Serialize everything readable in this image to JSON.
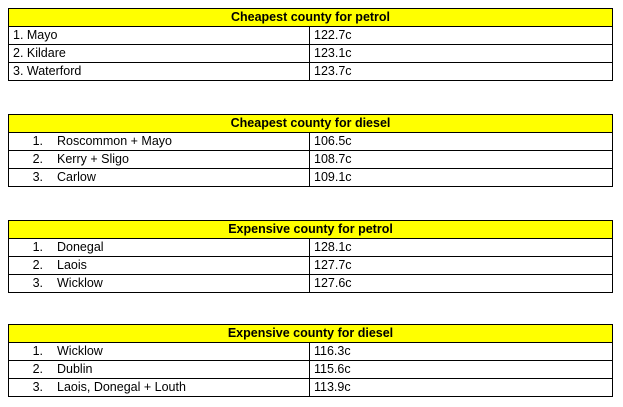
{
  "tables": [
    {
      "title": "Cheapest county for petrol",
      "rows": [
        {
          "label": "1. Mayo",
          "price": "122.7c"
        },
        {
          "label": "2. Kildare",
          "price": "123.1c"
        },
        {
          "label": "3. Waterford",
          "price": "123.7c"
        }
      ]
    },
    {
      "title": "Cheapest county for diesel",
      "rows": [
        {
          "num": "1.",
          "label": "Roscommon + Mayo",
          "price": "106.5c"
        },
        {
          "num": "2.",
          "label": "Kerry + Sligo",
          "price": "108.7c"
        },
        {
          "num": "3.",
          "label": "Carlow",
          "price": "109.1c"
        }
      ]
    },
    {
      "title": "Expensive county for petrol",
      "rows": [
        {
          "num": "1.",
          "label": "Donegal",
          "price": "128.1c"
        },
        {
          "num": "2.",
          "label": "Laois",
          "price": "127.7c"
        },
        {
          "num": "3.",
          "label": "Wicklow",
          "price": "127.6c"
        }
      ]
    },
    {
      "title": "Expensive county for diesel",
      "rows": [
        {
          "num": "1.",
          "label": "Wicklow",
          "price": "116.3c"
        },
        {
          "num": "2.",
          "label": "Dublin",
          "price": "115.6c"
        },
        {
          "num": "3.",
          "label": "Laois, Donegal + Louth",
          "price": "113.9c"
        }
      ]
    }
  ],
  "colors": {
    "header_background": "#ffff00",
    "border": "#000000"
  }
}
